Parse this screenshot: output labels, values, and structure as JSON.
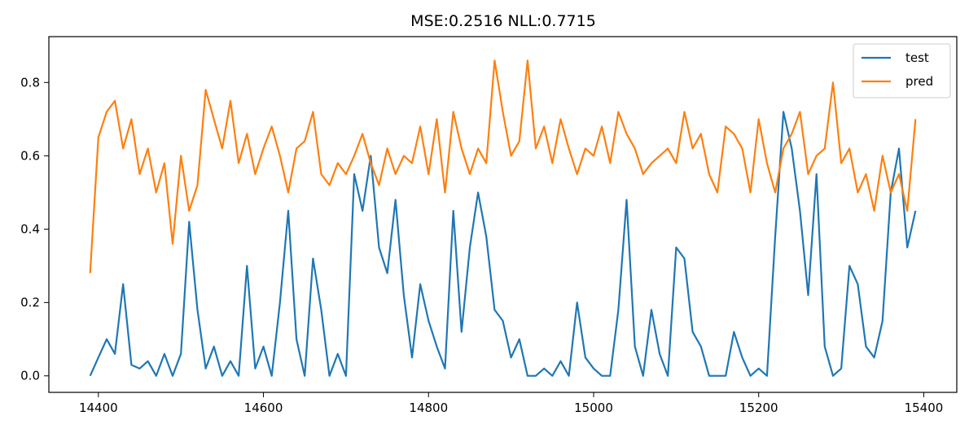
{
  "chart_data": {
    "type": "line",
    "title": "MSE:0.2516  NLL:0.7715",
    "xlabel": "",
    "ylabel": "",
    "xlim": [
      14340,
      15440
    ],
    "ylim": [
      -0.045,
      0.925
    ],
    "xticks": [
      14400,
      14600,
      14800,
      15000,
      15200,
      15400
    ],
    "xtick_labels": [
      "14400",
      "14600",
      "14800",
      "15000",
      "15200",
      "15400"
    ],
    "yticks": [
      0.0,
      0.2,
      0.4,
      0.6,
      0.8
    ],
    "ytick_labels": [
      "0.0",
      "0.2",
      "0.4",
      "0.6",
      "0.8"
    ],
    "grid": false,
    "legend_position": "top-right",
    "x": [
      14390,
      14400,
      14410,
      14420,
      14430,
      14440,
      14450,
      14460,
      14470,
      14480,
      14490,
      14500,
      14510,
      14520,
      14530,
      14540,
      14550,
      14560,
      14570,
      14580,
      14590,
      14600,
      14610,
      14620,
      14630,
      14640,
      14650,
      14660,
      14670,
      14680,
      14690,
      14700,
      14710,
      14720,
      14730,
      14740,
      14750,
      14760,
      14770,
      14780,
      14790,
      14800,
      14810,
      14820,
      14830,
      14840,
      14850,
      14860,
      14870,
      14880,
      14890,
      14900,
      14910,
      14920,
      14930,
      14940,
      14950,
      14960,
      14970,
      14980,
      14990,
      15000,
      15010,
      15020,
      15030,
      15040,
      15050,
      15060,
      15070,
      15080,
      15090,
      15100,
      15110,
      15120,
      15130,
      15140,
      15150,
      15160,
      15170,
      15180,
      15190,
      15200,
      15210,
      15220,
      15230,
      15240,
      15250,
      15260,
      15270,
      15280,
      15290,
      15300,
      15310,
      15320,
      15330,
      15340,
      15350,
      15360,
      15370,
      15380,
      15390
    ],
    "series": [
      {
        "name": "test",
        "color": "#1f77b4",
        "values": [
          0.0,
          0.05,
          0.1,
          0.06,
          0.25,
          0.03,
          0.02,
          0.04,
          0.0,
          0.06,
          0.0,
          0.06,
          0.42,
          0.18,
          0.02,
          0.08,
          0.0,
          0.04,
          0.0,
          0.3,
          0.02,
          0.08,
          0.0,
          0.2,
          0.45,
          0.1,
          0.0,
          0.32,
          0.18,
          0.0,
          0.06,
          0.0,
          0.55,
          0.45,
          0.6,
          0.35,
          0.28,
          0.48,
          0.22,
          0.05,
          0.25,
          0.15,
          0.08,
          0.02,
          0.45,
          0.12,
          0.35,
          0.5,
          0.38,
          0.18,
          0.15,
          0.05,
          0.1,
          0.0,
          0.0,
          0.02,
          0.0,
          0.04,
          0.0,
          0.2,
          0.05,
          0.02,
          0.0,
          0.0,
          0.18,
          0.48,
          0.08,
          0.0,
          0.18,
          0.06,
          0.0,
          0.35,
          0.32,
          0.12,
          0.08,
          0.0,
          0.0,
          0.0,
          0.12,
          0.05,
          0.0,
          0.02,
          0.0,
          0.38,
          0.72,
          0.62,
          0.45,
          0.22,
          0.55,
          0.08,
          0.0,
          0.02,
          0.3,
          0.25,
          0.08,
          0.05,
          0.15,
          0.5,
          0.62,
          0.35,
          0.45
        ]
      },
      {
        "name": "pred",
        "color": "#ff7f0e",
        "values": [
          0.28,
          0.65,
          0.72,
          0.75,
          0.62,
          0.7,
          0.55,
          0.62,
          0.5,
          0.58,
          0.36,
          0.6,
          0.45,
          0.52,
          0.78,
          0.7,
          0.62,
          0.75,
          0.58,
          0.66,
          0.55,
          0.62,
          0.68,
          0.6,
          0.5,
          0.62,
          0.64,
          0.72,
          0.55,
          0.52,
          0.58,
          0.55,
          0.6,
          0.66,
          0.58,
          0.52,
          0.62,
          0.55,
          0.6,
          0.58,
          0.68,
          0.55,
          0.7,
          0.5,
          0.72,
          0.62,
          0.55,
          0.62,
          0.58,
          0.86,
          0.72,
          0.6,
          0.64,
          0.86,
          0.62,
          0.68,
          0.58,
          0.7,
          0.62,
          0.55,
          0.62,
          0.6,
          0.68,
          0.58,
          0.72,
          0.66,
          0.62,
          0.55,
          0.58,
          0.6,
          0.62,
          0.58,
          0.72,
          0.62,
          0.66,
          0.55,
          0.5,
          0.68,
          0.66,
          0.62,
          0.5,
          0.7,
          0.58,
          0.5,
          0.62,
          0.66,
          0.72,
          0.55,
          0.6,
          0.62,
          0.8,
          0.58,
          0.62,
          0.5,
          0.55,
          0.45,
          0.6,
          0.5,
          0.55,
          0.45,
          0.7
        ]
      }
    ]
  }
}
